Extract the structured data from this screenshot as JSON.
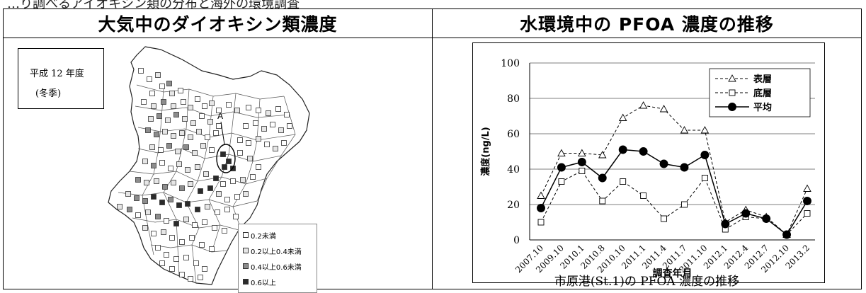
{
  "top_strip": "…り調べるアイオキシン類の分布と海外の環境調査",
  "left": {
    "header": "大気中のダイオキシン類濃度",
    "year_label": "平成 12 年度",
    "season_label": "(冬季)",
    "marker_label": "A",
    "legend": [
      {
        "label": "0.2未満",
        "color": "#ffffff"
      },
      {
        "label": "0.2以上0.4未満",
        "color": "#e6e6e6"
      },
      {
        "label": "0.4以上0.6未満",
        "color": "#8c8c8c"
      },
      {
        "label": "0.6以上",
        "color": "#2b2b2b"
      }
    ]
  },
  "right": {
    "header": "水環境中の PFOA 濃度の推移",
    "caption": "市原港(St.1)の PFOA 濃度の推移"
  },
  "chart_data": {
    "type": "line",
    "title": "",
    "xlabel": "調査年月",
    "ylabel": "濃度(ng/L)",
    "ylim": [
      0,
      100
    ],
    "yticks": [
      0,
      20,
      40,
      60,
      80,
      100
    ],
    "categories": [
      "2007.10",
      "2009.10",
      "2010.1",
      "2010.8",
      "2010.10",
      "2011.1",
      "2011.4",
      "2011.7",
      "2011.10",
      "2012.1",
      "2012.4",
      "2012.7",
      "2012.10",
      "2013.2"
    ],
    "legend_position": "top-right",
    "grid": "horizontal",
    "series": [
      {
        "name": "表層",
        "marker": "triangle-open",
        "line": "dashed",
        "values": [
          25,
          49,
          49,
          48,
          69,
          76,
          74,
          62,
          62,
          10,
          17,
          13,
          3,
          29
        ]
      },
      {
        "name": "底層",
        "marker": "square-open",
        "line": "dashed",
        "values": [
          10,
          33,
          39,
          22,
          33,
          25,
          12,
          20,
          35,
          6,
          13,
          12,
          3,
          15
        ]
      },
      {
        "name": "平均",
        "marker": "circle-filled",
        "line": "solid",
        "values": [
          18,
          41,
          44,
          35,
          51,
          50,
          43,
          41,
          48,
          9,
          15,
          12,
          3,
          22
        ]
      }
    ]
  }
}
